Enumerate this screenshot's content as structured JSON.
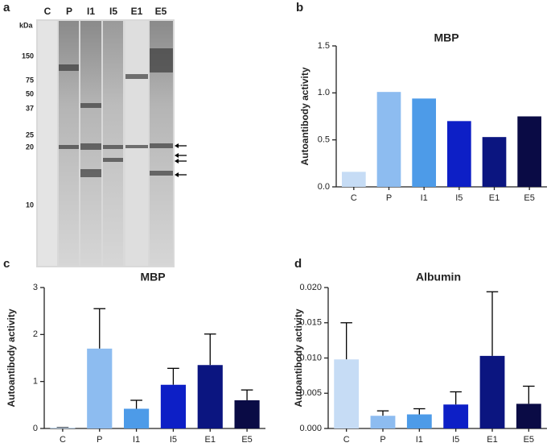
{
  "blot": {
    "panel": "a",
    "unit": "kDa",
    "lanes": [
      "C",
      "P",
      "I1",
      "I5",
      "E1",
      "E5"
    ],
    "markers": [
      150,
      75,
      50,
      37,
      25,
      20,
      10
    ]
  },
  "chart_data": [
    {
      "type": "bar",
      "panel": "b",
      "title": "MBP",
      "y_label": "Autoantibody activity",
      "categories": [
        "C",
        "P",
        "I1",
        "I5",
        "E1",
        "E5"
      ],
      "values": [
        0.16,
        1.01,
        0.94,
        0.7,
        0.53,
        0.75
      ],
      "colors": [
        "#c6dcf5",
        "#8dbcf0",
        "#4d9be8",
        "#0d1fc6",
        "#0b1580",
        "#0a0b45"
      ],
      "ylim": [
        0,
        1.5
      ],
      "yticks": [
        {
          "value": 0,
          "label": "0.0"
        },
        {
          "value": 0.5,
          "label": "0.5"
        },
        {
          "value": 1,
          "label": "1.0"
        },
        {
          "value": 1.5,
          "label": "1.5"
        }
      ]
    },
    {
      "type": "bar",
      "panel": "c",
      "title": "MBP",
      "y_label": "Autoantibody activity",
      "categories": [
        "C",
        "P",
        "I1",
        "I5",
        "E1",
        "E5"
      ],
      "values": [
        0.02,
        1.7,
        0.42,
        0.93,
        1.35,
        0.6
      ],
      "errors": [
        0,
        0.85,
        0.18,
        0.35,
        0.66,
        0.22
      ],
      "colors": [
        "#c6dcf5",
        "#8dbcf0",
        "#4d9be8",
        "#0d1fc6",
        "#0b1580",
        "#0a0b45"
      ],
      "ylim": [
        0,
        3
      ],
      "yticks": [
        0,
        1,
        2,
        3
      ]
    },
    {
      "type": "bar",
      "panel": "d",
      "title": "Albumin",
      "y_label": "Autoantibody activity",
      "categories": [
        "C",
        "P",
        "I1",
        "I5",
        "E1",
        "E5"
      ],
      "values": [
        0.0098,
        0.0018,
        0.002,
        0.0034,
        0.0103,
        0.0035
      ],
      "errors": [
        0.0052,
        0.0007,
        0.0008,
        0.0018,
        0.0091,
        0.0025
      ],
      "colors": [
        "#c6dcf5",
        "#8dbcf0",
        "#4d9be8",
        "#0d1fc6",
        "#0b1580",
        "#0a0b45"
      ],
      "ylim": [
        0,
        0.02
      ],
      "yticks": [
        {
          "value": 0,
          "label": "0.000"
        },
        {
          "value": 0.005,
          "label": "0.005"
        },
        {
          "value": 0.01,
          "label": "0.010"
        },
        {
          "value": 0.015,
          "label": "0.015"
        },
        {
          "value": 0.02,
          "label": "0.020"
        }
      ]
    }
  ]
}
